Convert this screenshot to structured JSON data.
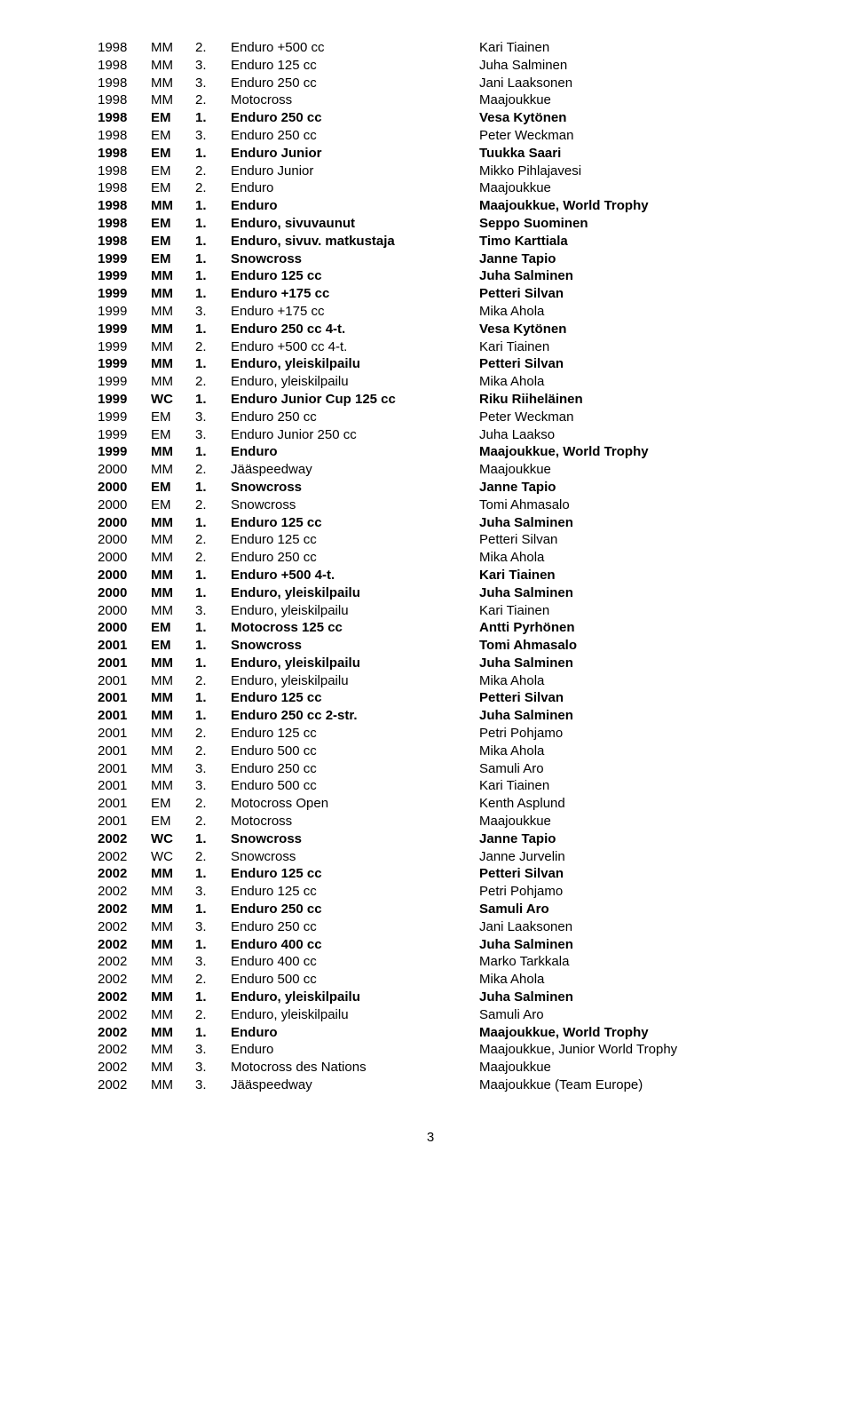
{
  "page_number": "3",
  "rows": [
    {
      "year": "1998",
      "champ": "MM",
      "pos": "2.",
      "class": "Enduro +500 cc",
      "rider": "Kari Tiainen",
      "bold": false
    },
    {
      "year": "1998",
      "champ": "MM",
      "pos": "3.",
      "class": "Enduro 125 cc",
      "rider": "Juha Salminen",
      "bold": false
    },
    {
      "year": "1998",
      "champ": "MM",
      "pos": "3.",
      "class": "Enduro 250 cc",
      "rider": "Jani Laaksonen",
      "bold": false
    },
    {
      "year": "1998",
      "champ": "MM",
      "pos": "2.",
      "class": "Motocross",
      "rider": "Maajoukkue",
      "bold": false
    },
    {
      "year": "1998",
      "champ": "EM",
      "pos": "1.",
      "class": "Enduro 250 cc",
      "rider": "Vesa Kytönen",
      "bold": true
    },
    {
      "year": "1998",
      "champ": "EM",
      "pos": "3.",
      "class": "Enduro 250 cc",
      "rider": "Peter Weckman",
      "bold": false
    },
    {
      "year": "1998",
      "champ": "EM",
      "pos": "1.",
      "class": "Enduro Junior",
      "rider": "Tuukka Saari",
      "bold": true
    },
    {
      "year": "1998",
      "champ": "EM",
      "pos": "2.",
      "class": "Enduro Junior",
      "rider": "Mikko Pihlajavesi",
      "bold": false
    },
    {
      "year": "1998",
      "champ": "EM",
      "pos": "2.",
      "class": "Enduro",
      "rider": "Maajoukkue",
      "bold": false
    },
    {
      "year": "1998",
      "champ": "MM",
      "pos": "1.",
      "class": "Enduro",
      "rider": "Maajoukkue, World Trophy",
      "bold": true
    },
    {
      "year": "1998",
      "champ": "EM",
      "pos": "1.",
      "class": "Enduro, sivuvaunut",
      "rider": "Seppo Suominen",
      "bold": true
    },
    {
      "year": "1998",
      "champ": "EM",
      "pos": "1.",
      "class": "Enduro, sivuv. matkustaja",
      "rider": "Timo Karttiala",
      "bold": true
    },
    {
      "year": "1999",
      "champ": "EM",
      "pos": "1.",
      "class": "Snowcross",
      "rider": "Janne Tapio",
      "bold": true
    },
    {
      "year": "1999",
      "champ": "MM",
      "pos": "1.",
      "class": "Enduro 125 cc",
      "rider": "Juha Salminen",
      "bold": true
    },
    {
      "year": "1999",
      "champ": "MM",
      "pos": "1.",
      "class": "Enduro +175 cc",
      "rider": "Petteri Silvan",
      "bold": true
    },
    {
      "year": "1999",
      "champ": "MM",
      "pos": "3.",
      "class": "Enduro +175 cc",
      "rider": "Mika Ahola",
      "bold": false
    },
    {
      "year": "1999",
      "champ": "MM",
      "pos": "1.",
      "class": "Enduro 250 cc 4-t.",
      "rider": "Vesa Kytönen",
      "bold": true
    },
    {
      "year": "1999",
      "champ": "MM",
      "pos": "2.",
      "class": "Enduro +500 cc 4-t.",
      "rider": "Kari Tiainen",
      "bold": false
    },
    {
      "year": "1999",
      "champ": "MM",
      "pos": "1.",
      "class": "Enduro, yleiskilpailu",
      "rider": "Petteri Silvan",
      "bold": true
    },
    {
      "year": "1999",
      "champ": "MM",
      "pos": "2.",
      "class": "Enduro, yleiskilpailu",
      "rider": "Mika Ahola",
      "bold": false
    },
    {
      "year": "1999",
      "champ": "WC",
      "pos": "1.",
      "class": "Enduro Junior Cup 125 cc",
      "rider": "Riku Riiheläinen",
      "bold": true
    },
    {
      "year": "1999",
      "champ": "EM",
      "pos": "3.",
      "class": "Enduro 250 cc",
      "rider": "Peter Weckman",
      "bold": false
    },
    {
      "year": "1999",
      "champ": "EM",
      "pos": "3.",
      "class": "Enduro Junior 250 cc",
      "rider": "Juha Laakso",
      "bold": false
    },
    {
      "year": "1999",
      "champ": "MM",
      "pos": "1.",
      "class": "Enduro",
      "rider": "Maajoukkue, World Trophy",
      "bold": true
    },
    {
      "year": "2000",
      "champ": "MM",
      "pos": "2.",
      "class": "Jääspeedway",
      "rider": "Maajoukkue",
      "bold": false
    },
    {
      "year": "2000",
      "champ": "EM",
      "pos": "1.",
      "class": "Snowcross",
      "rider": "Janne Tapio",
      "bold": true
    },
    {
      "year": "2000",
      "champ": "EM",
      "pos": "2.",
      "class": "Snowcross",
      "rider": "Tomi Ahmasalo",
      "bold": false
    },
    {
      "year": "2000",
      "champ": "MM",
      "pos": "1.",
      "class": "Enduro 125 cc",
      "rider": "Juha Salminen",
      "bold": true
    },
    {
      "year": "2000",
      "champ": "MM",
      "pos": "2.",
      "class": "Enduro 125 cc",
      "rider": "Petteri Silvan",
      "bold": false
    },
    {
      "year": "2000",
      "champ": "MM",
      "pos": "2.",
      "class": "Enduro 250 cc",
      "rider": "Mika Ahola",
      "bold": false
    },
    {
      "year": "2000",
      "champ": "MM",
      "pos": "1.",
      "class": "Enduro +500 4-t.",
      "rider": "Kari Tiainen",
      "bold": true
    },
    {
      "year": "2000",
      "champ": "MM",
      "pos": "1.",
      "class": "Enduro, yleiskilpailu",
      "rider": "Juha Salminen",
      "bold": true
    },
    {
      "year": "2000",
      "champ": "MM",
      "pos": "3.",
      "class": "Enduro, yleiskilpailu",
      "rider": "Kari Tiainen",
      "bold": false
    },
    {
      "year": "2000",
      "champ": "EM",
      "pos": "1.",
      "class": "Motocross 125 cc",
      "rider": "Antti Pyrhönen",
      "bold": true
    },
    {
      "year": "2001",
      "champ": "EM",
      "pos": "1.",
      "class": "Snowcross",
      "rider": "Tomi Ahmasalo",
      "bold": true
    },
    {
      "year": "2001",
      "champ": "MM",
      "pos": "1.",
      "class": "Enduro, yleiskilpailu",
      "rider": "Juha Salminen",
      "bold": true
    },
    {
      "year": "2001",
      "champ": "MM",
      "pos": "2.",
      "class": "Enduro, yleiskilpailu",
      "rider": "Mika Ahola",
      "bold": false
    },
    {
      "year": "2001",
      "champ": "MM",
      "pos": "1.",
      "class": "Enduro 125 cc",
      "rider": "Petteri Silvan",
      "bold": true
    },
    {
      "year": "2001",
      "champ": "MM",
      "pos": "1.",
      "class": "Enduro 250 cc 2-str.",
      "rider": "Juha Salminen",
      "bold": true
    },
    {
      "year": "2001",
      "champ": "MM",
      "pos": "2.",
      "class": "Enduro 125 cc",
      "rider": "Petri Pohjamo",
      "bold": false
    },
    {
      "year": "2001",
      "champ": "MM",
      "pos": "2.",
      "class": "Enduro 500 cc",
      "rider": "Mika Ahola",
      "bold": false
    },
    {
      "year": "2001",
      "champ": "MM",
      "pos": "3.",
      "class": "Enduro 250 cc",
      "rider": "Samuli Aro",
      "bold": false
    },
    {
      "year": "2001",
      "champ": "MM",
      "pos": "3.",
      "class": "Enduro 500 cc",
      "rider": "Kari Tiainen",
      "bold": false
    },
    {
      "year": "2001",
      "champ": "EM",
      "pos": "2.",
      "class": "Motocross Open",
      "rider": "Kenth Asplund",
      "bold": false
    },
    {
      "year": "2001",
      "champ": "EM",
      "pos": "2.",
      "class": "Motocross",
      "rider": "Maajoukkue",
      "bold": false
    },
    {
      "year": "2002",
      "champ": "WC",
      "pos": "1.",
      "class": "Snowcross",
      "rider": "Janne Tapio",
      "bold": true
    },
    {
      "year": "2002",
      "champ": "WC",
      "pos": "2.",
      "class": "Snowcross",
      "rider": "Janne Jurvelin",
      "bold": false
    },
    {
      "year": "2002",
      "champ": "MM",
      "pos": "1.",
      "class": "Enduro 125 cc",
      "rider": "Petteri Silvan",
      "bold": true
    },
    {
      "year": "2002",
      "champ": "MM",
      "pos": "3.",
      "class": "Enduro 125 cc",
      "rider": "Petri Pohjamo",
      "bold": false
    },
    {
      "year": "2002",
      "champ": "MM",
      "pos": "1.",
      "class": "Enduro 250 cc",
      "rider": "Samuli Aro",
      "bold": true
    },
    {
      "year": "2002",
      "champ": "MM",
      "pos": "3.",
      "class": "Enduro 250 cc",
      "rider": "Jani Laaksonen",
      "bold": false
    },
    {
      "year": "2002",
      "champ": "MM",
      "pos": "1.",
      "class": "Enduro 400 cc",
      "rider": "Juha Salminen",
      "bold": true
    },
    {
      "year": "2002",
      "champ": "MM",
      "pos": "3.",
      "class": "Enduro 400 cc",
      "rider": "Marko Tarkkala",
      "bold": false
    },
    {
      "year": "2002",
      "champ": "MM",
      "pos": "2.",
      "class": "Enduro 500 cc",
      "rider": "Mika Ahola",
      "bold": false
    },
    {
      "year": "2002",
      "champ": "MM",
      "pos": "1.",
      "class": "Enduro, yleiskilpailu",
      "rider": "Juha Salminen",
      "bold": true
    },
    {
      "year": "2002",
      "champ": "MM",
      "pos": "2.",
      "class": "Enduro, yleiskilpailu",
      "rider": "Samuli Aro",
      "bold": false
    },
    {
      "year": "2002",
      "champ": "MM",
      "pos": "1.",
      "class": "Enduro",
      "rider": "Maajoukkue, World Trophy",
      "bold": true
    },
    {
      "year": "2002",
      "champ": "MM",
      "pos": "3.",
      "class": "Enduro",
      "rider": "Maajoukkue, Junior World Trophy",
      "bold": false
    },
    {
      "year": "2002",
      "champ": "MM",
      "pos": "3.",
      "class": "Motocross des Nations",
      "rider": "Maajoukkue",
      "bold": false
    },
    {
      "year": "2002",
      "champ": "MM",
      "pos": "3.",
      "class": "Jääspeedway",
      "rider": "Maajoukkue (Team Europe)",
      "bold": false
    }
  ]
}
